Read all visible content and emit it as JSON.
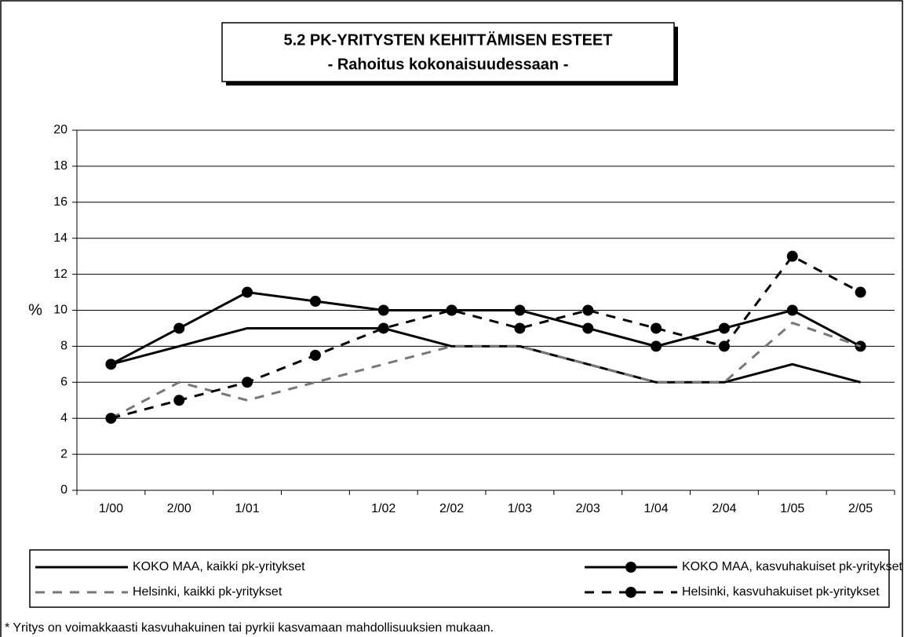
{
  "chart_data": {
    "type": "line",
    "title": "5.2 PK-YRITYSTEN KEHITTÄMISEN ESTEET",
    "subtitle": "- Rahoitus kokonaisuudessaan -",
    "y_label": "%",
    "categories": [
      "1/00",
      "2/00",
      "1/01",
      null,
      "1/02",
      "2/02",
      "1/03",
      "2/03",
      "1/04",
      "2/04",
      "1/05",
      "2/05"
    ],
    "series": [
      {
        "name": "KOKO MAA, kaikki pk-yritykset",
        "color": "#000000",
        "dash": false,
        "marker": false,
        "values": [
          7,
          8,
          9,
          9,
          9,
          8,
          8,
          7,
          6,
          6,
          7,
          6
        ]
      },
      {
        "name": "KOKO MAA, kasvuhakuiset pk-yritykset *",
        "color": "#000000",
        "dash": false,
        "marker": true,
        "values": [
          7,
          9,
          11,
          10.5,
          10,
          10,
          10,
          9,
          8,
          9,
          10,
          8
        ]
      },
      {
        "name": "Helsinki, kaikki pk-yritykset",
        "color": "#777777",
        "dash": true,
        "marker": false,
        "values": [
          4,
          6,
          5,
          6,
          7,
          8,
          8,
          7,
          6,
          6,
          9.3,
          8
        ]
      },
      {
        "name": "Helsinki, kasvuhakuiset pk-yritykset",
        "color": "#000000",
        "dash": true,
        "marker": true,
        "values": [
          4,
          5,
          6,
          7.5,
          9,
          10,
          9,
          10,
          9,
          8,
          13,
          11
        ]
      }
    ],
    "ylim": [
      0,
      20
    ],
    "yticks": [
      0,
      2,
      4,
      6,
      8,
      10,
      12,
      14,
      16,
      18,
      20
    ],
    "grid": true,
    "footnote": "* Yritys on voimakkaasti kasvuhakuinen tai pyrkii kasvamaan mahdollisuuksien mukaan."
  }
}
